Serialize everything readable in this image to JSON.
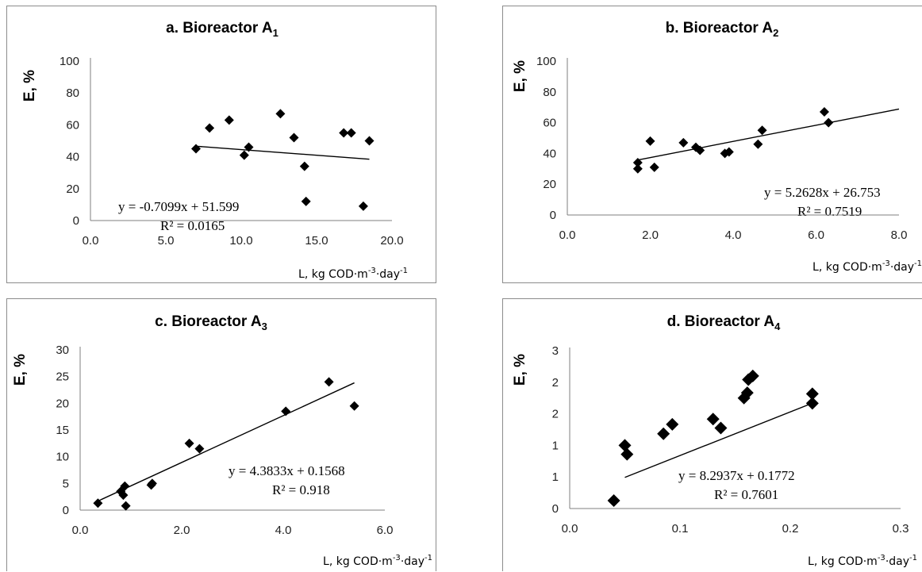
{
  "chart_data": [
    {
      "type": "scatter",
      "title": "a. Bioreactor A",
      "title_sub": "1",
      "ylabel": "E, %",
      "xlabel": "L,  kg COD·m",
      "xlabel_sup1": "-3",
      "xlabel_mid": "·day",
      "xlabel_sup2": "-1",
      "xlim": [
        0,
        20
      ],
      "ylim": [
        0,
        100
      ],
      "x_ticks": [
        "0.0",
        "5.0",
        "10.0",
        "15.0",
        "20.0"
      ],
      "y_ticks": [
        "0",
        "20",
        "40",
        "60",
        "80",
        "100"
      ],
      "grid": false,
      "points": [
        [
          7.0,
          45
        ],
        [
          7.9,
          58
        ],
        [
          9.2,
          63
        ],
        [
          10.2,
          41
        ],
        [
          10.5,
          46
        ],
        [
          12.6,
          67
        ],
        [
          13.5,
          52
        ],
        [
          14.2,
          34
        ],
        [
          14.3,
          12
        ],
        [
          16.8,
          55
        ],
        [
          17.3,
          55
        ],
        [
          18.1,
          9
        ],
        [
          18.5,
          50
        ]
      ],
      "trendline": {
        "x": [
          7.0,
          18.5
        ]
      },
      "equation": "y = -0.7099x  + 51.599",
      "r_squared": "R² = 0.0165",
      "colors": {
        "points": "#000000",
        "axis": "#7f7f7f"
      }
    },
    {
      "type": "scatter",
      "title": "b. Bioreactor A",
      "title_sub": "2",
      "ylabel": "E, %",
      "xlabel": "L,  kg COD·m",
      "xlabel_sup1": "-3",
      "xlabel_mid": "·day",
      "xlabel_sup2": "-1",
      "xlim": [
        0,
        8
      ],
      "ylim": [
        0,
        100
      ],
      "x_ticks": [
        "0.0",
        "2.0",
        "4.0",
        "6.0",
        "8.0"
      ],
      "y_ticks": [
        "0",
        "20",
        "40",
        "60",
        "80",
        "100"
      ],
      "grid": false,
      "points": [
        [
          1.7,
          30
        ],
        [
          1.7,
          34
        ],
        [
          2.0,
          48
        ],
        [
          2.1,
          31
        ],
        [
          2.8,
          47
        ],
        [
          3.1,
          44
        ],
        [
          3.2,
          42
        ],
        [
          3.8,
          40
        ],
        [
          3.9,
          41
        ],
        [
          4.6,
          46
        ],
        [
          4.7,
          55
        ],
        [
          6.2,
          67
        ],
        [
          6.3,
          60
        ]
      ],
      "trendline": {
        "x": [
          1.7,
          8.0
        ]
      },
      "equation": "y = 5.2628x   + 26.753",
      "r_squared": "R² = 0.7519",
      "colors": {
        "points": "#000000",
        "axis": "#7f7f7f"
      }
    },
    {
      "type": "scatter",
      "title": "c. Bioreactor A",
      "title_sub": "3",
      "ylabel": "E, %",
      "xlabel": "L,  kg COD·m",
      "xlabel_sup1": "-3",
      "xlabel_mid": "·day",
      "xlabel_sup2": "-1",
      "xlim": [
        0,
        6
      ],
      "ylim": [
        0,
        30
      ],
      "x_ticks": [
        "0.0",
        "2.0",
        "4.0",
        "6.0"
      ],
      "y_ticks": [
        "0",
        "5",
        "10",
        "15",
        "20",
        "25",
        "30"
      ],
      "grid": false,
      "points": [
        [
          0.35,
          1.3
        ],
        [
          0.8,
          3.5
        ],
        [
          0.85,
          2.8
        ],
        [
          0.88,
          4.5
        ],
        [
          0.9,
          0.8
        ],
        [
          1.4,
          4.7
        ],
        [
          1.42,
          5.0
        ],
        [
          2.15,
          12.5
        ],
        [
          2.35,
          11.5
        ],
        [
          4.05,
          18.5
        ],
        [
          4.9,
          24.0
        ],
        [
          5.4,
          19.5
        ]
      ],
      "trendline": {
        "x": [
          0.35,
          5.4
        ]
      },
      "equation": "y = 4.3833x   + 0.1568",
      "r_squared": "R² = 0.918",
      "colors": {
        "points": "#000000",
        "axis": "#7f7f7f"
      }
    },
    {
      "type": "scatter",
      "title": "d. Bioreactor A",
      "title_sub": "4",
      "ylabel": "E, %",
      "xlabel": "L,  kg COD·m",
      "xlabel_sup1": "-3",
      "xlabel_mid": "·day",
      "xlabel_sup2": "-1",
      "xlim": [
        0,
        0.3
      ],
      "ylim": [
        0,
        3
      ],
      "x_ticks": [
        "0.0",
        "0.1",
        "0.2",
        "0.3"
      ],
      "y_ticks": [
        "0",
        "1",
        "1",
        "2",
        "2",
        "3"
      ],
      "grid": false,
      "points": [
        [
          0.04,
          0.15
        ],
        [
          0.05,
          1.2
        ],
        [
          0.052,
          1.03
        ],
        [
          0.085,
          1.42
        ],
        [
          0.093,
          1.6
        ],
        [
          0.13,
          1.7
        ],
        [
          0.137,
          1.53
        ],
        [
          0.158,
          2.1
        ],
        [
          0.161,
          2.2
        ],
        [
          0.162,
          2.45
        ],
        [
          0.166,
          2.52
        ],
        [
          0.22,
          2.18
        ],
        [
          0.22,
          2.0
        ]
      ],
      "trendline": {
        "x": [
          0.05,
          0.22
        ]
      },
      "equation": "y = 8.2937x   + 0.1772",
      "r_squared": "R² = 0.7601",
      "colors": {
        "points": "#000000",
        "axis": "#7f7f7f"
      }
    }
  ]
}
